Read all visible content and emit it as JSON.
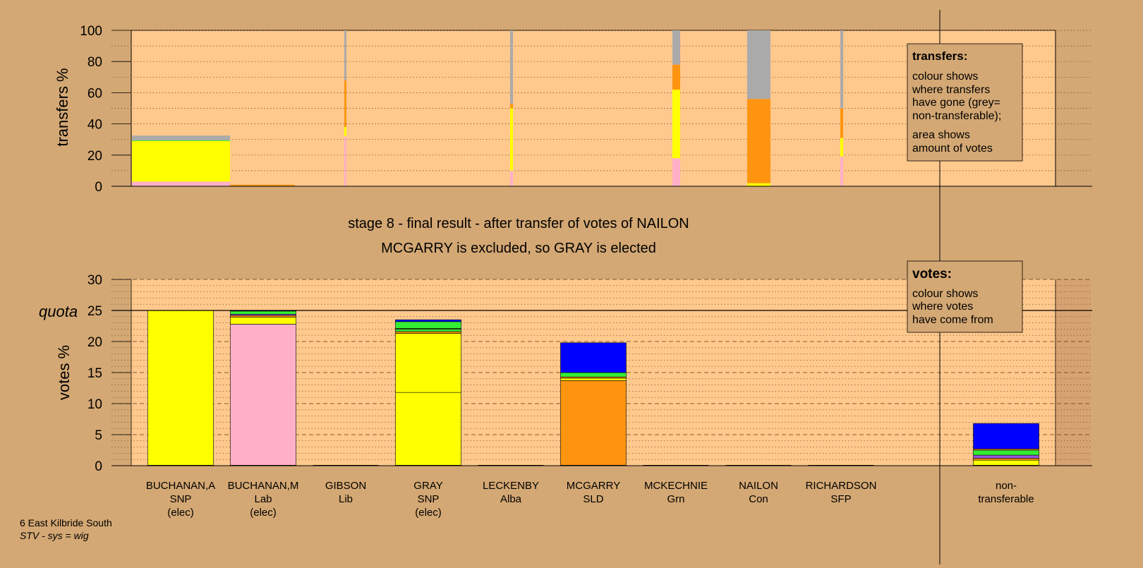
{
  "colors": {
    "background": "#d4a874",
    "plot_area": "#ffc88c",
    "SNP": "#ffff00",
    "Lab": "#ffb0c8",
    "SLD": "#ff9410",
    "Con": "#0000ff",
    "Grn": "#33ee33",
    "Alba": "#9955dd",
    "nontransferable": "#aaaaaa"
  },
  "caption": {
    "stage": "stage 8 - final result - after transfer of votes of NAILON",
    "result": "MCGARRY is excluded, so GRAY is elected"
  },
  "footer": {
    "ward": "6 East Kilbride South",
    "system": "STV - sys = wig"
  },
  "legend_transfers": {
    "title": "transfers:",
    "line1": "colour shows",
    "line2": "where transfers",
    "line3": "have gone (grey=",
    "line4": "non-transferable);",
    "line5": "area shows",
    "line6": "amount of votes"
  },
  "legend_votes": {
    "title": "votes:",
    "line1": "colour shows",
    "line2": "where votes",
    "line3": "have come from"
  },
  "labels": {
    "quota": "quota"
  },
  "chart_data": [
    {
      "type": "bar",
      "stacked": true,
      "ylabel": "transfers %",
      "ylim": [
        0,
        100
      ],
      "yticks": [
        0,
        20,
        40,
        60,
        80,
        100
      ],
      "grid": "dotted",
      "note": "transfer bars: width proportional to votes transferred",
      "bars": [
        {
          "candidate": "BUCHANAN,A",
          "segments": [
            {
              "party": "Lab",
              "value": 3
            },
            {
              "party": "SNP",
              "value": 26
            },
            {
              "party": "Grn",
              "value": 0.5
            },
            {
              "party": "nontransferable",
              "value": 3
            }
          ]
        },
        {
          "candidate": "BUCHANAN,M",
          "segments": [
            {
              "party": "SLD",
              "value": 1
            }
          ]
        },
        {
          "candidate": "GIBSON",
          "segments": [
            {
              "party": "Lab",
              "value": 32
            },
            {
              "party": "SNP",
              "value": 6
            },
            {
              "party": "SLD",
              "value": 30
            },
            {
              "party": "nontransferable",
              "value": 32
            }
          ]
        },
        {
          "candidate": "LECKENBY",
          "segments": [
            {
              "party": "Lab",
              "value": 10
            },
            {
              "party": "SNP",
              "value": 40
            },
            {
              "party": "SLD",
              "value": 3
            },
            {
              "party": "nontransferable",
              "value": 47
            }
          ]
        },
        {
          "candidate": "MCKECHNIE",
          "segments": [
            {
              "party": "Lab",
              "value": 18
            },
            {
              "party": "SNP",
              "value": 44
            },
            {
              "party": "SLD",
              "value": 16
            },
            {
              "party": "nontransferable",
              "value": 22
            }
          ]
        },
        {
          "candidate": "NAILON",
          "segments": [
            {
              "party": "SNP",
              "value": 2
            },
            {
              "party": "SLD",
              "value": 54
            },
            {
              "party": "nontransferable",
              "value": 44
            }
          ]
        },
        {
          "candidate": "RICHARDSON",
          "segments": [
            {
              "party": "Lab",
              "value": 19
            },
            {
              "party": "SNP",
              "value": 12
            },
            {
              "party": "SLD",
              "value": 19
            },
            {
              "party": "nontransferable",
              "value": 50
            }
          ]
        }
      ]
    },
    {
      "type": "bar",
      "stacked": true,
      "ylabel": "votes %",
      "ylim": [
        0,
        30
      ],
      "yticks": [
        0,
        5,
        10,
        15,
        20,
        25,
        30
      ],
      "quota": 25,
      "grid": "dashed",
      "categories": [
        {
          "name": "BUCHANAN,A",
          "party": "SNP",
          "status": "(elec)"
        },
        {
          "name": "BUCHANAN,M",
          "party": "Lab",
          "status": "(elec)"
        },
        {
          "name": "GIBSON",
          "party": "Lib",
          "status": ""
        },
        {
          "name": "GRAY",
          "party": "SNP",
          "status": "(elec)"
        },
        {
          "name": "LECKENBY",
          "party": "Alba",
          "status": ""
        },
        {
          "name": "MCGARRY",
          "party": "SLD",
          "status": ""
        },
        {
          "name": "MCKECHNIE",
          "party": "Grn",
          "status": ""
        },
        {
          "name": "NAILON",
          "party": "Con",
          "status": ""
        },
        {
          "name": "RICHARDSON",
          "party": "SFP",
          "status": ""
        },
        {
          "name": "non-",
          "party": "transferable",
          "status": ""
        }
      ],
      "bars": [
        {
          "candidate": "BUCHANAN,A",
          "segments": [
            {
              "party": "SNP",
              "value": 25
            }
          ]
        },
        {
          "candidate": "BUCHANAN,M",
          "segments": [
            {
              "party": "Lab",
              "value": 22.8
            },
            {
              "party": "SNP",
              "value": 1.1
            },
            {
              "party": "SLD",
              "value": 0.3
            },
            {
              "party": "Alba",
              "value": 0.2
            },
            {
              "party": "Grn",
              "value": 0.5
            },
            {
              "party": "Con",
              "value": 0.1
            }
          ]
        },
        {
          "candidate": "GRAY",
          "segments": [
            {
              "party": "SNP",
              "value": 11.8
            },
            {
              "party": "SNP",
              "value": 9.5
            },
            {
              "party": "SLD",
              "value": 0.3
            },
            {
              "party": "Grn",
              "value": 0.4
            },
            {
              "party": "SLD",
              "value": 0.1
            },
            {
              "party": "Grn",
              "value": 1.1
            },
            {
              "party": "Con",
              "value": 0.3
            }
          ]
        },
        {
          "candidate": "MCGARRY",
          "segments": [
            {
              "party": "SLD",
              "value": 13.7
            },
            {
              "party": "SNP",
              "value": 0.4
            },
            {
              "party": "SLD",
              "value": 0.2
            },
            {
              "party": "Grn",
              "value": 0.7
            },
            {
              "party": "Con",
              "value": 4.8
            }
          ]
        },
        {
          "candidate": "non-transferable",
          "segments": [
            {
              "party": "SNP",
              "value": 0.9
            },
            {
              "party": "SLD",
              "value": 0.3
            },
            {
              "party": "Alba",
              "value": 0.5
            },
            {
              "party": "Grn",
              "value": 0.8
            },
            {
              "party": "SLD",
              "value": 0.2
            },
            {
              "party": "Con",
              "value": 4.1
            }
          ]
        }
      ]
    }
  ]
}
